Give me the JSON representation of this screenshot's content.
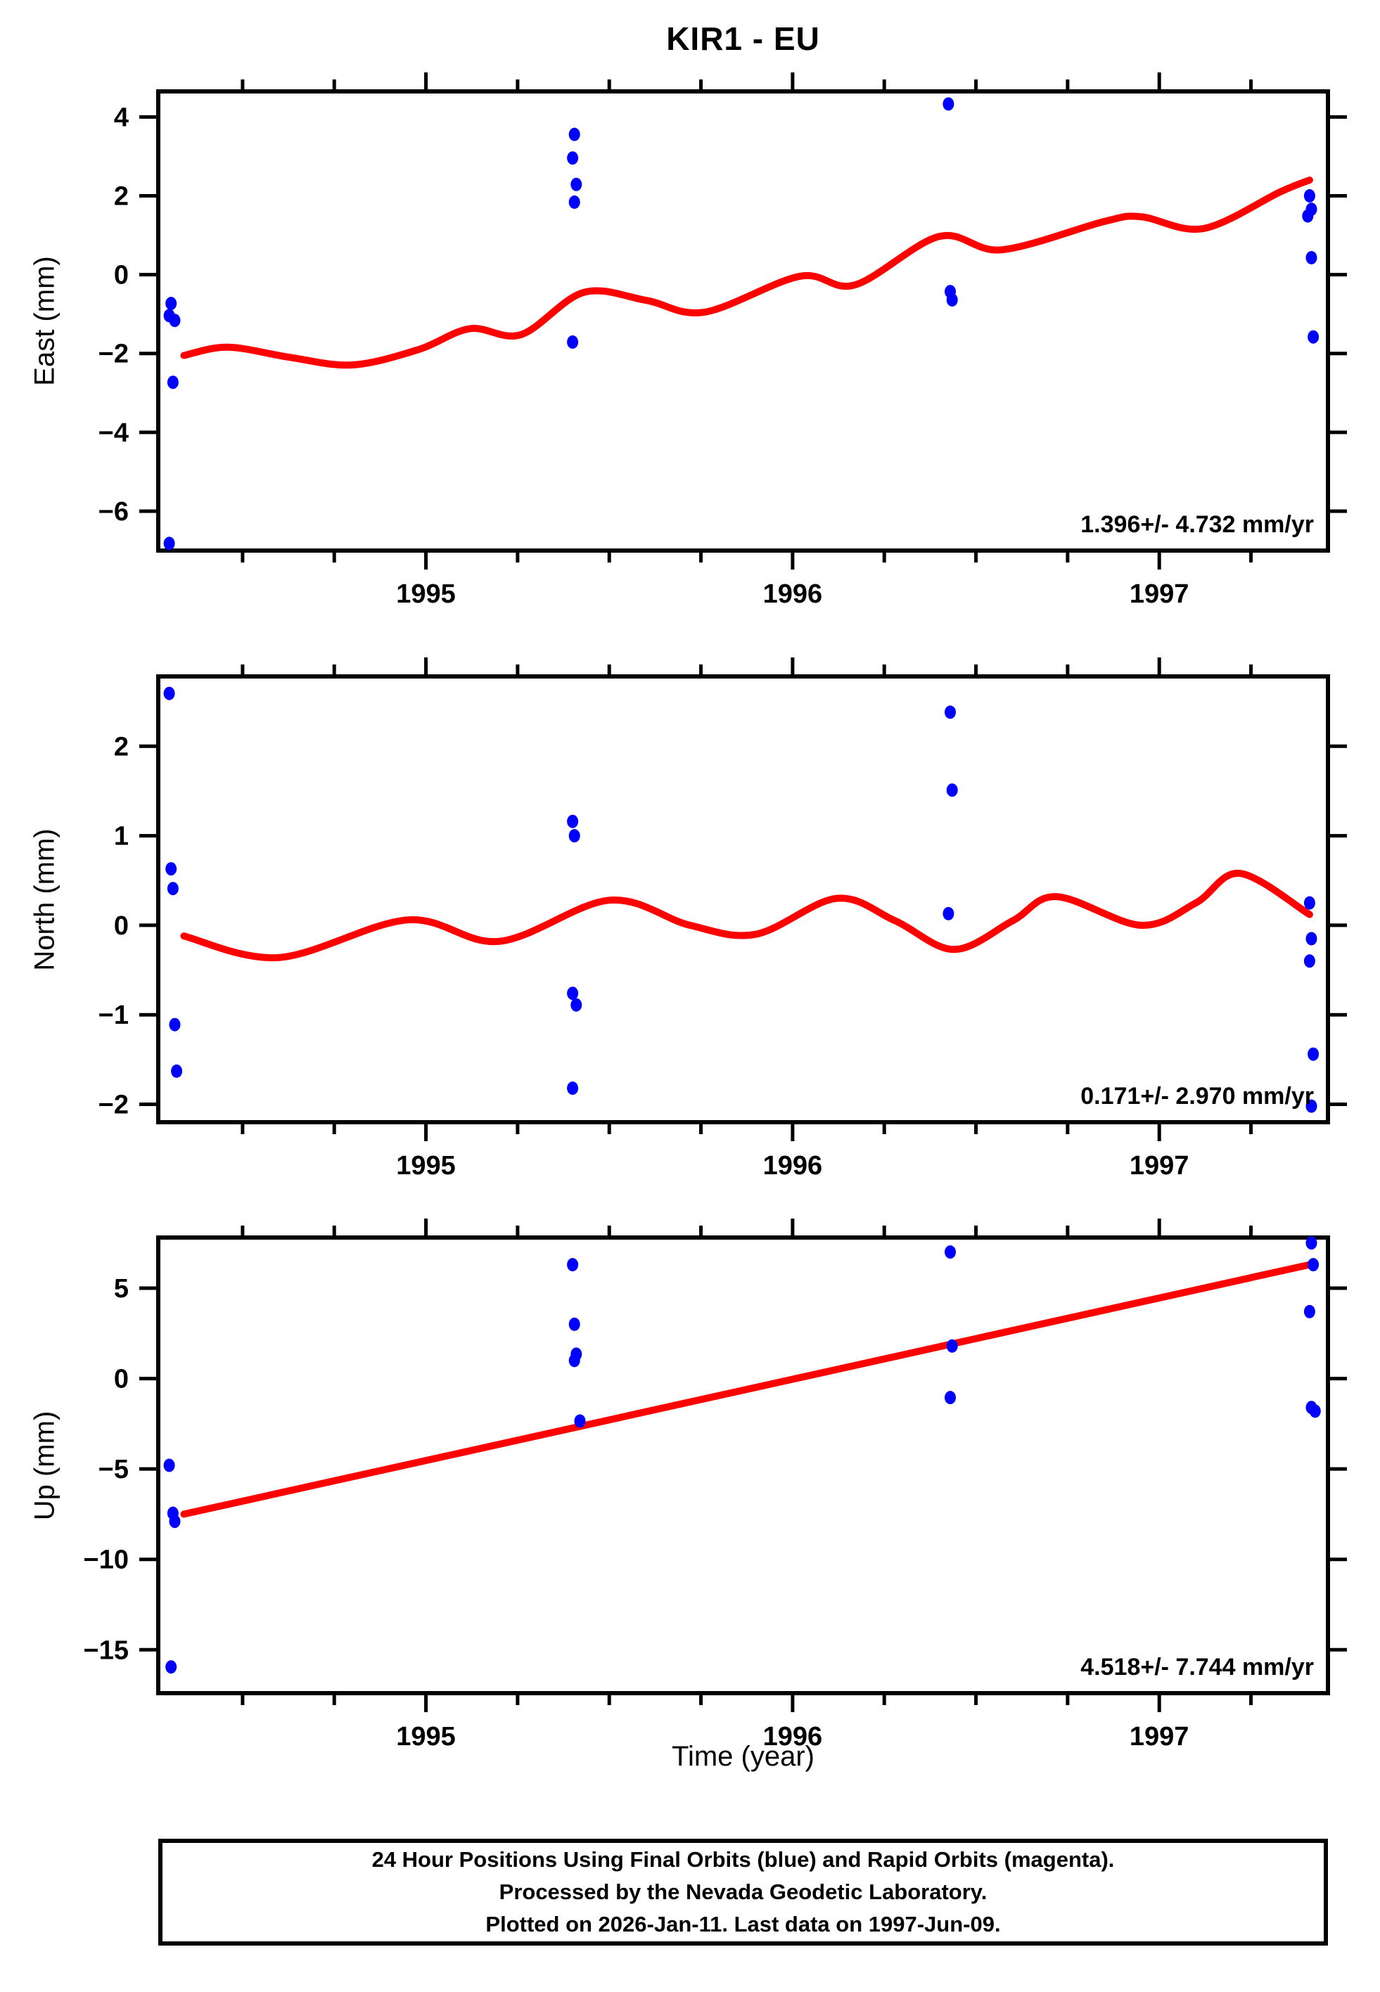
{
  "title": "KIR1 - EU",
  "xlabel": "Time (year)",
  "caption": {
    "line1": "24 Hour Positions Using Final Orbits (blue) and Rapid Orbits (magenta).",
    "line2": "Processed by the Nevada Geodetic Laboratory.",
    "line3": "Plotted on 2026-Jan-11. Last data on 1997-Jun-09."
  },
  "colors": {
    "points": "#0000ff",
    "fit_line": "#ff0000",
    "frame": "#000000",
    "background": "#ffffff"
  },
  "chart_data": [
    {
      "id": "east",
      "type": "scatter",
      "ylabel": "East (mm)",
      "rate_label": "1.396+/- 4.732 mm/yr",
      "xlim": [
        1994.27,
        1997.46
      ],
      "ylim": [
        -7.0,
        4.65
      ],
      "xticks": [
        1995,
        1996,
        1997
      ],
      "xminor_step": 0.25,
      "yticks": [
        -6,
        -4,
        -2,
        0,
        2,
        4
      ],
      "legend": "none",
      "grid": false,
      "points": [
        [
          1994.305,
          -0.73
        ],
        [
          1994.3,
          -1.04
        ],
        [
          1994.315,
          -1.16
        ],
        [
          1994.31,
          -2.73
        ],
        [
          1994.3,
          -6.82
        ],
        [
          1995.405,
          3.56
        ],
        [
          1995.4,
          2.96
        ],
        [
          1995.41,
          2.29
        ],
        [
          1995.405,
          1.84
        ],
        [
          1995.4,
          -1.71
        ],
        [
          1996.425,
          4.33
        ],
        [
          1996.43,
          -0.43
        ],
        [
          1996.435,
          -0.64
        ],
        [
          1997.41,
          2.0
        ],
        [
          1997.415,
          1.66
        ],
        [
          1997.405,
          1.49
        ],
        [
          1997.415,
          0.43
        ],
        [
          1997.42,
          -1.58
        ]
      ],
      "fit": [
        [
          1994.34,
          -2.05
        ],
        [
          1994.46,
          -1.84
        ],
        [
          1994.63,
          -2.1
        ],
        [
          1994.8,
          -2.29
        ],
        [
          1994.98,
          -1.9
        ],
        [
          1995.12,
          -1.37
        ],
        [
          1995.26,
          -1.52
        ],
        [
          1995.43,
          -0.45
        ],
        [
          1995.6,
          -0.65
        ],
        [
          1995.76,
          -0.95
        ],
        [
          1996.02,
          -0.04
        ],
        [
          1996.17,
          -0.26
        ],
        [
          1996.4,
          0.97
        ],
        [
          1996.57,
          0.63
        ],
        [
          1996.85,
          1.35
        ],
        [
          1996.95,
          1.47
        ],
        [
          1997.12,
          1.17
        ],
        [
          1997.33,
          2.1
        ],
        [
          1997.41,
          2.4
        ]
      ]
    },
    {
      "id": "north",
      "type": "scatter",
      "ylabel": "North (mm)",
      "rate_label": "0.171+/- 2.970 mm/yr",
      "xlim": [
        1994.27,
        1997.46
      ],
      "ylim": [
        -2.2,
        2.78
      ],
      "xticks": [
        1995,
        1996,
        1997
      ],
      "xminor_step": 0.25,
      "yticks": [
        -2,
        -1,
        0,
        1,
        2
      ],
      "legend": "none",
      "grid": false,
      "points": [
        [
          1994.3,
          2.59
        ],
        [
          1994.305,
          0.63
        ],
        [
          1994.31,
          0.41
        ],
        [
          1994.315,
          -1.11
        ],
        [
          1994.32,
          -1.63
        ],
        [
          1995.4,
          1.16
        ],
        [
          1995.405,
          1.0
        ],
        [
          1995.4,
          -0.76
        ],
        [
          1995.41,
          -0.89
        ],
        [
          1995.4,
          -1.82
        ],
        [
          1996.43,
          2.38
        ],
        [
          1996.435,
          1.51
        ],
        [
          1996.425,
          0.13
        ],
        [
          1997.41,
          0.25
        ],
        [
          1997.415,
          -0.15
        ],
        [
          1997.41,
          -0.4
        ],
        [
          1997.42,
          -1.44
        ],
        [
          1997.415,
          -2.02
        ]
      ],
      "fit": [
        [
          1994.34,
          -0.12
        ],
        [
          1994.6,
          -0.36
        ],
        [
          1994.95,
          0.06
        ],
        [
          1995.2,
          -0.18
        ],
        [
          1995.5,
          0.28
        ],
        [
          1995.72,
          0.0
        ],
        [
          1995.9,
          -0.1
        ],
        [
          1996.12,
          0.3
        ],
        [
          1996.28,
          0.05
        ],
        [
          1996.44,
          -0.27
        ],
        [
          1996.6,
          0.05
        ],
        [
          1996.72,
          0.32
        ],
        [
          1996.95,
          0.0
        ],
        [
          1997.1,
          0.25
        ],
        [
          1997.22,
          0.58
        ],
        [
          1997.41,
          0.12
        ]
      ]
    },
    {
      "id": "up",
      "type": "scatter",
      "ylabel": "Up (mm)",
      "rate_label": "4.518+/- 7.744 mm/yr",
      "xlim": [
        1994.27,
        1997.46
      ],
      "ylim": [
        -17.4,
        7.8
      ],
      "xticks": [
        1995,
        1996,
        1997
      ],
      "xminor_step": 0.25,
      "yticks": [
        -15,
        -10,
        -5,
        0,
        5
      ],
      "legend": "none",
      "grid": false,
      "points": [
        [
          1994.3,
          -4.8
        ],
        [
          1994.31,
          -7.45
        ],
        [
          1994.315,
          -7.9
        ],
        [
          1994.305,
          -15.95
        ],
        [
          1995.4,
          6.3
        ],
        [
          1995.405,
          3.0
        ],
        [
          1995.41,
          1.35
        ],
        [
          1995.405,
          1.0
        ],
        [
          1995.42,
          -2.35
        ],
        [
          1996.43,
          7.0
        ],
        [
          1996.435,
          1.8
        ],
        [
          1996.43,
          -1.05
        ],
        [
          1997.415,
          7.5
        ],
        [
          1997.42,
          6.3
        ],
        [
          1997.41,
          3.7
        ],
        [
          1997.415,
          -1.6
        ],
        [
          1997.425,
          -1.8
        ]
      ],
      "fit": [
        [
          1994.34,
          -7.5
        ],
        [
          1997.41,
          6.3
        ]
      ]
    }
  ]
}
